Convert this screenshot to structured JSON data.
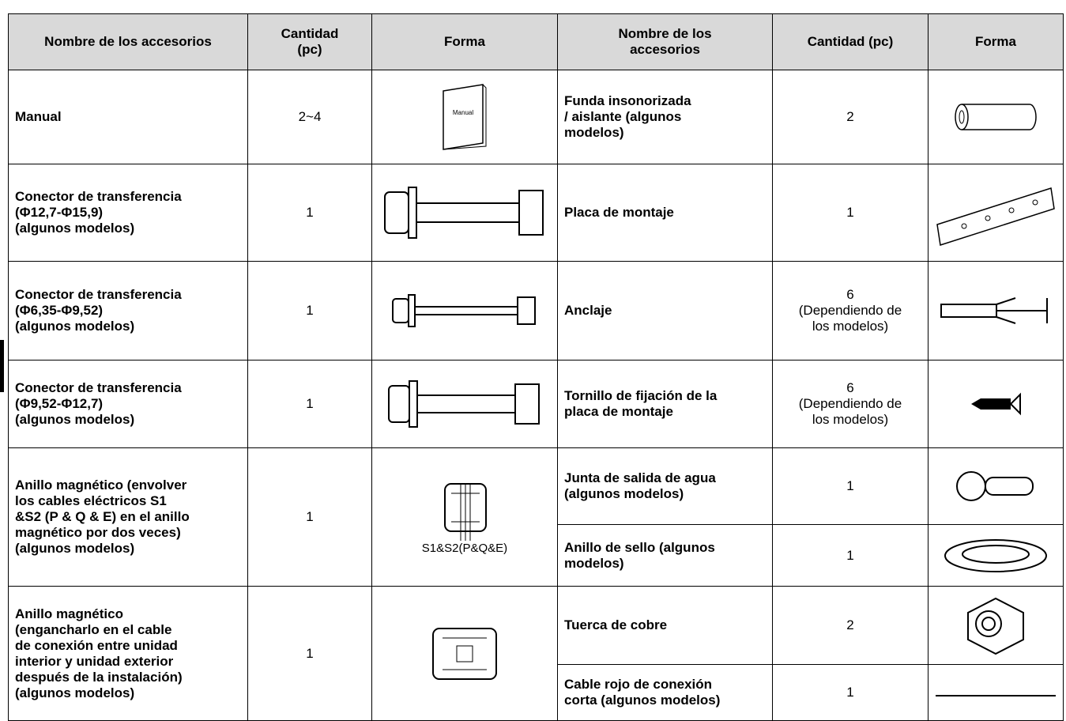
{
  "table": {
    "header": [
      "Nombre de los accesorios",
      "Cantidad\n(pc)",
      "Forma",
      "Nombre de los\naccesorios",
      "Cantidad (pc)",
      "Forma"
    ],
    "left": [
      {
        "name": "Manual",
        "qty": "2~4",
        "image_label": "Manual"
      },
      {
        "name": "Conector de transferencia\n(Φ12,7-Φ15,9)\n(algunos modelos)",
        "qty": "1"
      },
      {
        "name": "Conector de transferencia\n(Φ6,35-Φ9,52)\n(algunos modelos)",
        "qty": "1"
      },
      {
        "name": "Conector de transferencia\n(Φ9,52-Φ12,7)\n(algunos modelos)",
        "qty": "1"
      },
      {
        "name": "Anillo magnético (envolver\nlos cables eléctricos S1\n&S2 (P & Q & E) en el anillo\nmagnético por dos veces)\n(algunos modelos)",
        "qty": "1",
        "image_label": "S1&S2(P&Q&E)"
      },
      {
        "name": "Anillo magnético\n(engancharlo en el cable\nde conexión entre unidad\ninterior y unidad exterior\ndespués de la instalación)\n(algunos modelos)",
        "qty": "1"
      }
    ],
    "right": [
      {
        "name": "Funda insonorizada\n/ aislante (algunos\nmodelos)",
        "qty": "2"
      },
      {
        "name": "Placa de montaje",
        "qty": "1"
      },
      {
        "name": "Anclaje",
        "qty": "6",
        "qty_note": "(Dependiendo de\nlos modelos)"
      },
      {
        "name": "Tornillo de fijación de la\nplaca de montaje",
        "qty": "6",
        "qty_note": "(Dependiendo de\nlos modelos)"
      },
      {
        "name": "Junta de salida de agua\n(algunos modelos)",
        "qty": "1"
      },
      {
        "name": "Anillo de sello (algunos\nmodelos)",
        "qty": "1"
      },
      {
        "name": "Tuerca de cobre",
        "qty": "2"
      },
      {
        "name": "Cable rojo de conexión\ncorta (algunos modelos)",
        "qty": "1"
      }
    ]
  }
}
